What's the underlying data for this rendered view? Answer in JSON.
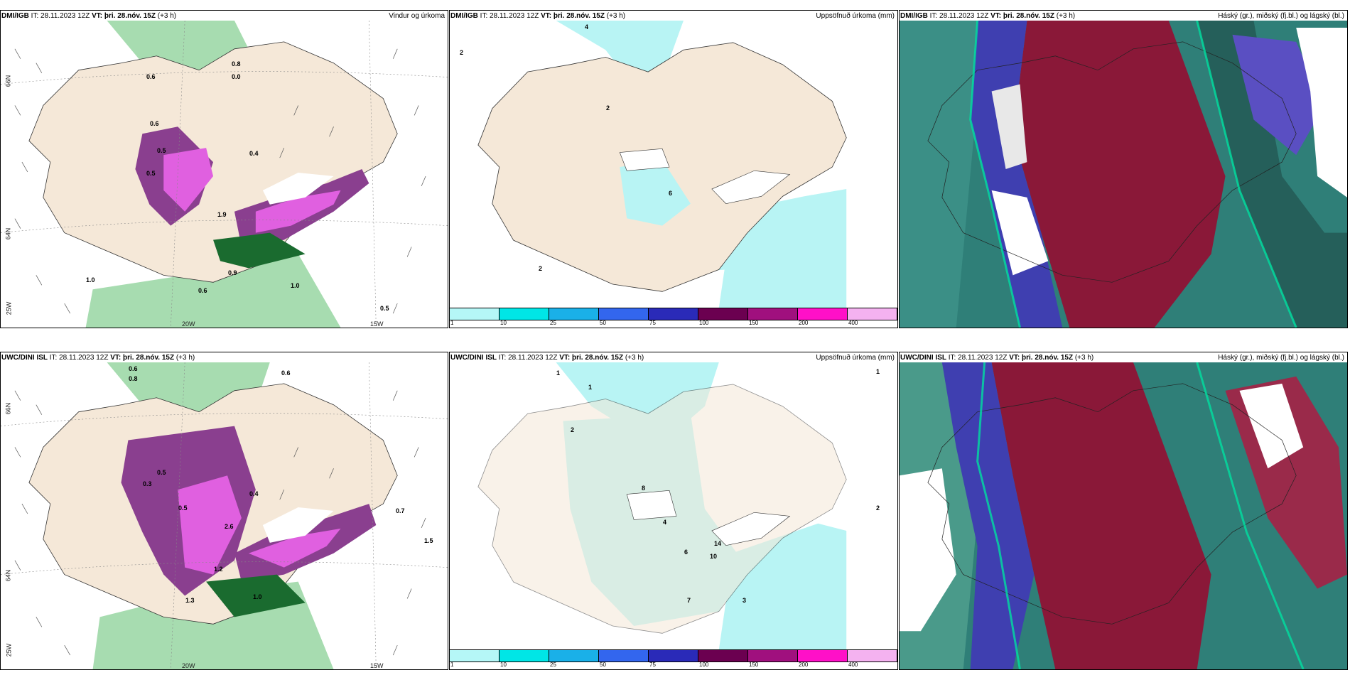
{
  "row1": {
    "wind": {
      "source": "DMI/IGB",
      "it": "IT: 28.11.2023 12Z",
      "vt_label": "VT:",
      "vt": "þri. 28.nóv. 15Z",
      "lead": "(+3 h)",
      "title_right": "Vindur og úrkoma",
      "ticks": {
        "lat66": "66N",
        "lat64": "64N",
        "lon20": "20W",
        "lon15": "15W",
        "lat_bottom": "25W"
      },
      "values": [
        "0.6",
        "0.8",
        "0.0",
        "0.6",
        "0.5",
        "0.5",
        "0.4",
        "1.9",
        "1.0",
        "0.6",
        "1.0",
        "0.5",
        "0.9"
      ]
    },
    "accum": {
      "source": "DMI/IGB",
      "it": "IT: 28.11.2023 12Z",
      "vt_label": "VT:",
      "vt": "þri. 28.nóv. 15Z",
      "lead": "(+3 h)",
      "title_right": "Uppsöfnuð úrkoma (mm)",
      "values": [
        "4",
        "2",
        "2",
        "6",
        "2"
      ]
    },
    "cloud": {
      "source": "DMI/IGB",
      "it": "IT: 28.11.2023 12Z",
      "vt_label": "VT:",
      "vt": "þri. 28.nóv. 15Z",
      "lead": "(+3 h)",
      "title_right": "Háský (gr.), miðský (fj.bl.) og lágský (bl.)"
    }
  },
  "row2": {
    "wind": {
      "source": "UWC/DINI ISL",
      "it": "IT: 28.11.2023 12Z",
      "vt_label": "VT:",
      "vt": "þri. 28.nóv. 15Z",
      "lead": "(+3 h)",
      "title_right": "",
      "ticks": {
        "lat66": "66N",
        "lat64": "64N",
        "lon20": "20W",
        "lon15": "15W",
        "lat_bottom": "25W"
      },
      "values": [
        "0.6",
        "0.8",
        "0.6",
        "0.5",
        "0.3",
        "0.4",
        "0.5",
        "2.6",
        "1.3",
        "1.0",
        "1.5",
        "0.7",
        "1.2"
      ]
    },
    "accum": {
      "source": "UWC/DINI ISL",
      "it": "IT: 28.11.2023 12Z",
      "vt_label": "VT:",
      "vt": "þri. 28.nóv. 15Z",
      "lead": "(+3 h)",
      "title_right": "Uppsöfnuð úrkoma (mm)",
      "values": [
        "2",
        "1",
        "4",
        "8",
        "10",
        "14",
        "6",
        "7",
        "3",
        "2",
        "1",
        "1"
      ]
    },
    "cloud": {
      "source": "UWC/DINI ISL",
      "it": "IT: 28.11.2023 12Z",
      "vt_label": "VT:",
      "vt": "þri. 28.nóv. 15Z",
      "lead": "(+3 h)",
      "title_right": "Háský (gr.), miðský (fj.bl.) og lágský (bl.)"
    }
  },
  "colorbar": {
    "ticks": [
      "1",
      "10",
      "25",
      "50",
      "75",
      "100",
      "150",
      "200",
      "400"
    ],
    "colors": [
      "#b5f7f7",
      "#00e6e6",
      "#1ab0e8",
      "#3366ee",
      "#2a2ab8",
      "#6b0050",
      "#a0107e",
      "#ff10c8",
      "#f4b2f0"
    ]
  },
  "palette": {
    "land": "#f5e8d8",
    "green": "#7fcf8f",
    "darkgreen": "#1a6b2f",
    "purple": "#8a3f8f",
    "magenta": "#e060e0",
    "cyan": "#b8f4f4",
    "maroon": "#8a1838",
    "teal": "#2f7f78"
  }
}
